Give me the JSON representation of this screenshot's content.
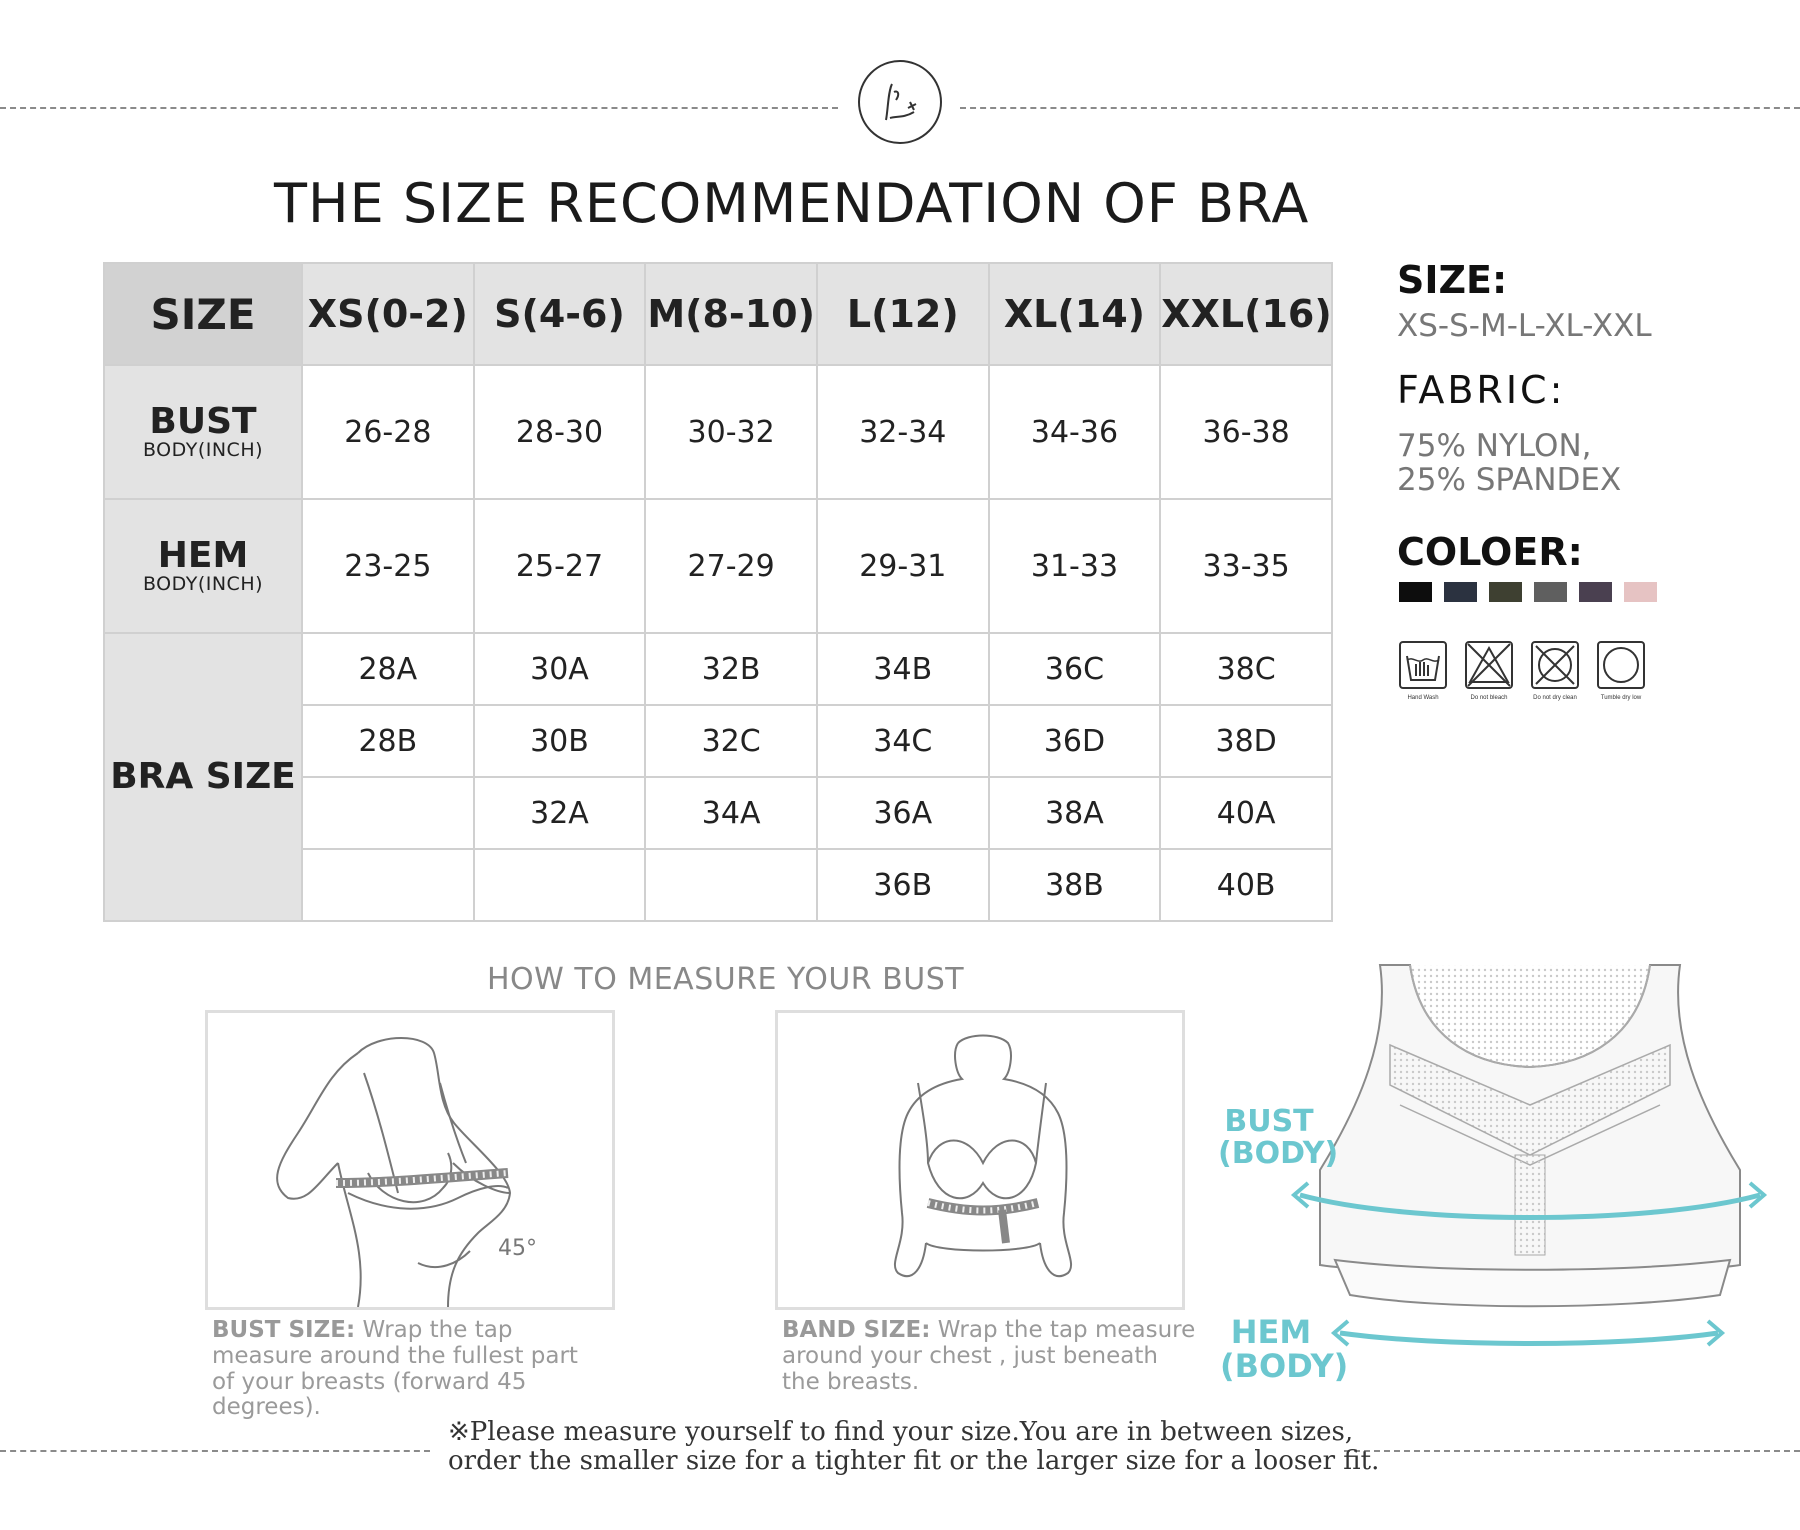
{
  "logo_text": "K",
  "title": "THE SIZE RECOMMENDATION OF BRA",
  "table": {
    "header": [
      "SIZE",
      "XS(0-2)",
      "S(4-6)",
      "M(8-10)",
      "L(12)",
      "XL(14)",
      "XXL(16)"
    ],
    "bust": {
      "label": "BUST",
      "sub": "BODY(INCH)",
      "values": [
        "26-28",
        "28-30",
        "30-32",
        "32-34",
        "34-36",
        "36-38"
      ]
    },
    "hem": {
      "label": "HEM",
      "sub": "BODY(INCH)",
      "values": [
        "23-25",
        "25-27",
        "27-29",
        "29-31",
        "31-33",
        "33-35"
      ]
    },
    "bra_size": {
      "label": "BRA SIZE",
      "rows": [
        [
          "28A",
          "30A",
          "32B",
          "34B",
          "36C",
          "38C"
        ],
        [
          "28B",
          "30B",
          "32C",
          "34C",
          "36D",
          "38D"
        ],
        [
          "",
          "32A",
          "34A",
          "36A",
          "38A",
          "40A"
        ],
        [
          "",
          "",
          "",
          "36B",
          "38B",
          "40B"
        ]
      ]
    }
  },
  "side": {
    "size_label": "SIZE:",
    "size_value": "XS-S-M-L-XL-XXL",
    "fabric_label": "FABRIC:",
    "fabric_line1": "75% NYLON,",
    "fabric_line2": "25% SPANDEX",
    "color_label": "COLOER:",
    "colors": [
      "#0d0d0d",
      "#2b3240",
      "#3e4031",
      "#5f5f5f",
      "#4a4050",
      "#e6c3c3"
    ],
    "care": [
      {
        "icon": "hand-wash-icon",
        "label": "Hand Wash"
      },
      {
        "icon": "do-not-bleach-icon",
        "label": "Do not bleach"
      },
      {
        "icon": "do-not-dry-clean-icon",
        "label": "Do not dry clean"
      },
      {
        "icon": "tumble-dry-low-icon",
        "label": "Tumble dry low"
      }
    ]
  },
  "howto": {
    "title": "HOW TO MEASURE YOUR BUST",
    "bust_label": "BUST SIZE:",
    "bust_line1": " Wrap the tap",
    "bust_line2": "measure around the fullest part",
    "bust_line3": "of your breasts (forward 45",
    "bust_line4": "degrees).",
    "angle": "45°",
    "band_label": "BAND SIZE:",
    "band_line1": " Wrap the tap measure",
    "band_line2": "around your chest , just beneath",
    "band_line3": "the breasts."
  },
  "diagram": {
    "bust_1": "BUST",
    "bust_2": "(BODY)",
    "hem_1": "HEM",
    "hem_2": "(BODY)",
    "accent": "#6cc7cf"
  },
  "note": {
    "line1": "※Please measure yourself to find your size.You are in between sizes,",
    "line2": "order the smaller size for a tighter fit or the larger size for a looser fit."
  }
}
